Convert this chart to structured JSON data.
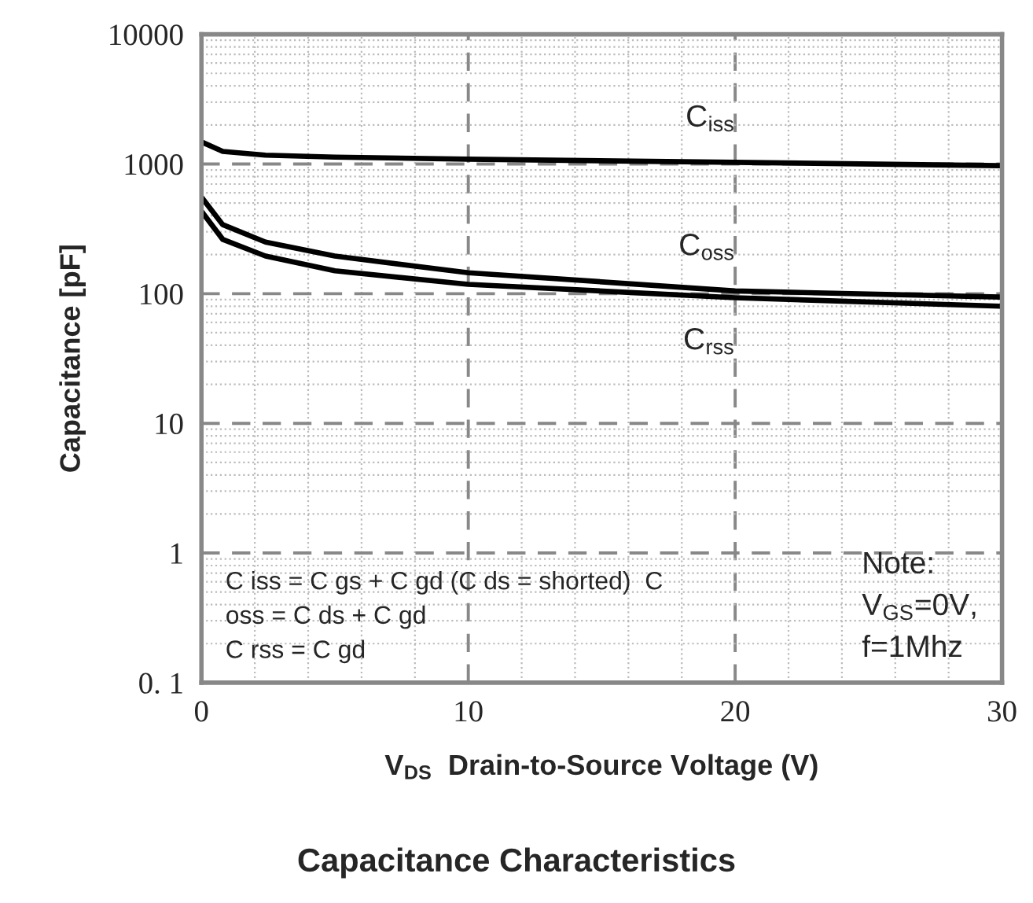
{
  "chart_data": {
    "type": "line",
    "title": "Capacitance Characteristics",
    "xlabel": "V$_{DS}$  Drain-to-Source Voltage (V)",
    "ylabel": "Capacitance [pF]",
    "x": [
      0,
      0.8,
      2.4,
      5,
      10,
      20,
      30
    ],
    "series": [
      {
        "name": "C$_{iss}$",
        "color": "#000000",
        "values": [
          1480,
          1250,
          1170,
          1130,
          1090,
          1030,
          970
        ]
      },
      {
        "name": "C$_{oss}$",
        "color": "#000000",
        "values": [
          556,
          340,
          250,
          195,
          145,
          105,
          94
        ]
      },
      {
        "name": "C$_{rss}$",
        "color": "#000000",
        "values": [
          433,
          262,
          195,
          150,
          118,
          93,
          80
        ]
      }
    ],
    "log": "y",
    "xlim": [
      0,
      30
    ],
    "ylim": [
      0.1,
      10000
    ],
    "xticks": [
      0,
      10,
      20,
      30
    ],
    "yticks": [
      {
        "value": 0.1,
        "label": "0. 1"
      },
      1,
      10,
      100,
      1000,
      10000
    ],
    "grid": true,
    "line_style": "solid",
    "marker": "none",
    "annotations": [
      "C iss = C gs + C gd (C ds = shorted)  C\noss = C ds + C gd\nC rss = C gd",
      "Note:\nV$_{GS}$=0V,\nf=1Mhz"
    ]
  }
}
